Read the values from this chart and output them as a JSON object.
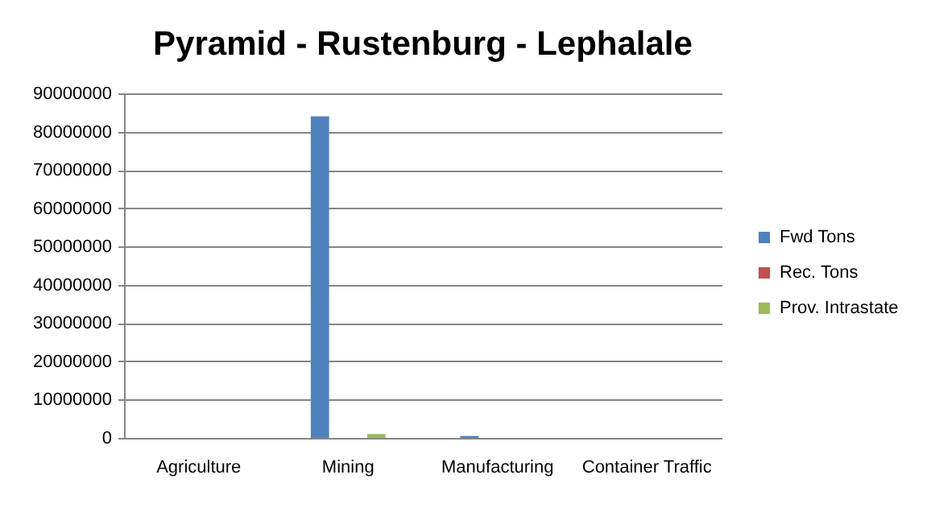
{
  "chart_data": {
    "type": "bar",
    "title": "Pyramid - Rustenburg - Lephalale",
    "categories": [
      "Agriculture",
      "Mining",
      "Manufacturing",
      "Container Traffic"
    ],
    "series": [
      {
        "name": "Fwd Tons",
        "color": "#4f81bd",
        "values": [
          0,
          84000000,
          500000,
          0
        ]
      },
      {
        "name": "Rec. Tons",
        "color": "#c0504d",
        "values": [
          0,
          0,
          0,
          0
        ]
      },
      {
        "name": "Prov. Intrastate",
        "color": "#9bbb59",
        "values": [
          0,
          1000000,
          0,
          0
        ]
      }
    ],
    "ylim": [
      0,
      90000000
    ],
    "yticks": [
      0,
      10000000,
      20000000,
      30000000,
      40000000,
      50000000,
      60000000,
      70000000,
      80000000,
      90000000
    ],
    "grid": "y",
    "legend": "right"
  }
}
